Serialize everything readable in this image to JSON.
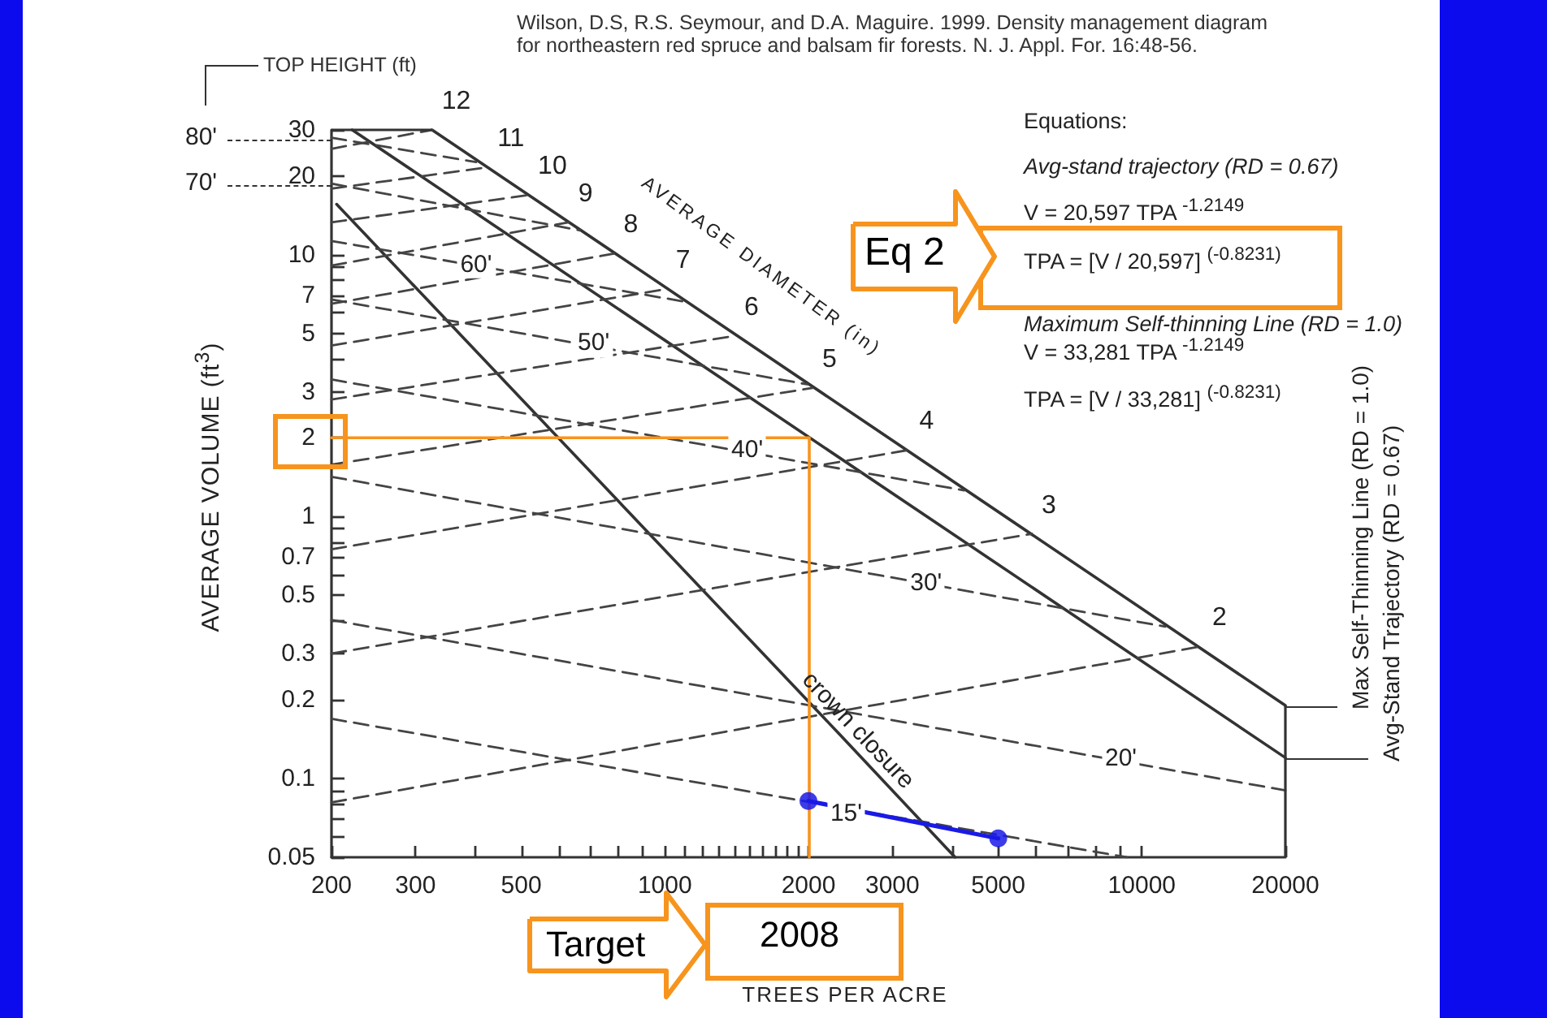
{
  "chart_data": {
    "type": "line",
    "annotations": [
      "Wilson, D.S, R.S. Seymour, and D.A. Maguire. 1999. Density management diagram for northeastern red spruce and balsam fir forests.  N. J. Appl. For. 16:48-56.",
      "TOP HEIGHT (ft)",
      "80'",
      "70'",
      "AVERAGE DIAMETER (in)",
      "Equations:",
      "Avg-stand trajectory (RD = 0.67)",
      "V = 20,597 TPA $^{-1.2149}$",
      "TPA = [V / 20,597] $^{(-0.8231)}$",
      "Maximum Self-thinning Line (RD = 1.0)",
      "V = 33,281 TPA $^{-1.2149}$",
      "TPA = [V / 33,281] $^{(-0.8231)}$",
      "Eq 2",
      "Target",
      "2008",
      {
        "text": "60'",
        "x": 402,
        "y": 9.2
      },
      {
        "text": "50'",
        "x": 709,
        "y": 4.6
      },
      {
        "text": "40'",
        "x": 1488,
        "y": 1.8
      },
      {
        "text": "30'",
        "x": 3530,
        "y": 0.56
      },
      {
        "text": "20'",
        "x": 9040,
        "y": 0.12
      },
      {
        "text": "15'",
        "x": 2400,
        "y": 0.074
      }
    ],
    "xlabel": "TREES PER ACRE",
    "ylabel": "AVERAGE VOLUME (ft$^{3}$)",
    "log": "xy",
    "xlim": [
      200,
      20000
    ],
    "ylim": [
      0.05,
      30
    ],
    "xticks": [
      200,
      300,
      {
        "value": 400,
        "label": null
      },
      500,
      {
        "value": 600,
        "label": null
      },
      {
        "value": 700,
        "label": null
      },
      {
        "value": 800,
        "label": null
      },
      {
        "value": 900,
        "label": null
      },
      1000,
      {
        "value": 1100,
        "label": null
      },
      {
        "value": 1200,
        "label": null
      },
      {
        "value": 1300,
        "label": null
      },
      {
        "value": 1400,
        "label": null
      },
      {
        "value": 1500,
        "label": null
      },
      {
        "value": 1600,
        "label": null
      },
      {
        "value": 1700,
        "label": null
      },
      {
        "value": 1800,
        "label": null
      },
      {
        "value": 1900,
        "label": null
      },
      2000,
      3000,
      {
        "value": 4000,
        "label": null
      },
      5000,
      {
        "value": 6000,
        "label": null
      },
      {
        "value": 7000,
        "label": null
      },
      {
        "value": 8000,
        "label": null
      },
      {
        "value": 9000,
        "label": null
      },
      10000,
      20000
    ],
    "yticks": [
      0.05,
      {
        "value": 0.06,
        "label": null
      },
      {
        "value": 0.07,
        "label": null
      },
      {
        "value": 0.08,
        "label": null
      },
      {
        "value": 0.09,
        "label": null
      },
      0.1,
      0.2,
      0.3,
      {
        "value": 0.4,
        "label": null
      },
      0.5,
      {
        "value": 0.6,
        "label": null
      },
      0.7,
      {
        "value": 0.8,
        "label": null
      },
      {
        "value": 0.9,
        "label": null
      },
      1,
      2,
      3,
      {
        "value": 4,
        "label": null
      },
      5,
      {
        "value": 6,
        "label": null
      },
      7,
      {
        "value": 8,
        "label": null
      },
      {
        "value": 9,
        "label": null
      },
      10,
      20,
      30
    ],
    "grid": false,
    "legend": false,
    "marker": "none",
    "line_style": "solid",
    "series": [
      {
        "name": "Max Self-Thinning Line (RD = 1.0)",
        "color": "#333333",
        "x": [
          325,
          20000
        ],
        "values": [
          30,
          0.19
        ]
      },
      {
        "name": "Avg-Stand Trajectory (RD = 0.67)",
        "color": "#333333",
        "x": [
          221,
          20000
        ],
        "values": [
          30,
          0.12
        ]
      },
      {
        "name": "crown closure",
        "color": "#333333",
        "x": [
          205,
          2320,
          4060
        ],
        "values": [
          15.6,
          0.148,
          0.05
        ]
      },
      {
        "color": "#444444",
        "line_style": "dashed",
        "x": [
          200,
          402
        ],
        "values": [
          28,
          22.6
        ]
      },
      {
        "color": "#444444",
        "line_style": "dashed",
        "x": [
          200,
          664
        ],
        "values": [
          18.7,
          12.4
        ]
      },
      {
        "color": "#444444",
        "line_style": "dashed",
        "x": [
          200,
          1114
        ],
        "values": [
          11.3,
          6.6
        ]
      },
      {
        "color": "#444444",
        "line_style": "dashed",
        "x": [
          200,
          1990
        ],
        "values": [
          6.75,
          3.2
        ]
      },
      {
        "color": "#444444",
        "line_style": "dashed",
        "x": [
          200,
          4240
        ],
        "values": [
          3.34,
          1.26
        ]
      },
      {
        "color": "#444444",
        "line_style": "dashed",
        "x": [
          200,
          11200
        ],
        "values": [
          1.42,
          0.38
        ]
      },
      {
        "color": "#444444",
        "line_style": "dashed",
        "x": [
          200,
          20000
        ],
        "values": [
          0.403,
          0.09
        ]
      },
      {
        "color": "#444444",
        "line_style": "dashed",
        "x": [
          200,
          9300
        ],
        "values": [
          0.169,
          0.05
        ]
      },
      {
        "name": "12",
        "color": "#444444",
        "line_style": "dashed",
        "x": [
          200,
          325
        ],
        "values": [
          25.4,
          30
        ]
      },
      {
        "name": "11",
        "color": "#444444",
        "line_style": "dashed",
        "x": [
          200,
          425
        ],
        "values": [
          17.9,
          21.6
        ]
      },
      {
        "name": "10",
        "color": "#444444",
        "line_style": "dashed",
        "x": [
          200,
          517
        ],
        "values": [
          13.3,
          16.9
        ]
      },
      {
        "name": "9",
        "color": "#444444",
        "line_style": "dashed",
        "x": [
          200,
          628
        ],
        "values": [
          9.1,
          13.3
        ]
      },
      {
        "name": "8",
        "color": "#444444",
        "line_style": "dashed",
        "x": [
          200,
          782
        ],
        "values": [
          6.5,
          10.1
        ]
      },
      {
        "name": "7",
        "color": "#444444",
        "line_style": "dashed",
        "x": [
          200,
          1006
        ],
        "values": [
          4.5,
          7.4
        ]
      },
      {
        "name": "6",
        "color": "#444444",
        "line_style": "dashed",
        "x": [
          200,
          1400
        ],
        "values": [
          2.8,
          4.9
        ]
      },
      {
        "name": "5",
        "color": "#444444",
        "line_style": "dashed",
        "x": [
          200,
          2040
        ],
        "values": [
          1.58,
          3.1
        ]
      },
      {
        "name": "4",
        "color": "#444444",
        "line_style": "dashed",
        "x": [
          200,
          3260
        ],
        "values": [
          0.75,
          1.8
        ]
      },
      {
        "name": "3",
        "color": "#444444",
        "line_style": "dashed",
        "x": [
          200,
          5880
        ],
        "values": [
          0.3,
          0.86
        ]
      },
      {
        "name": "2",
        "color": "#444444",
        "line_style": "dashed",
        "x": [
          200,
          13400
        ],
        "values": [
          0.081,
          0.32
        ]
      },
      {
        "color": "#1a1ae6",
        "marker": "circle",
        "x": [
          2000,
          5000
        ],
        "values": [
          0.082,
          0.059
        ]
      },
      {
        "color": "#f7941d",
        "x": [
          200,
          2008,
          2008
        ],
        "values": [
          2,
          2,
          0.05
        ]
      }
    ]
  }
}
